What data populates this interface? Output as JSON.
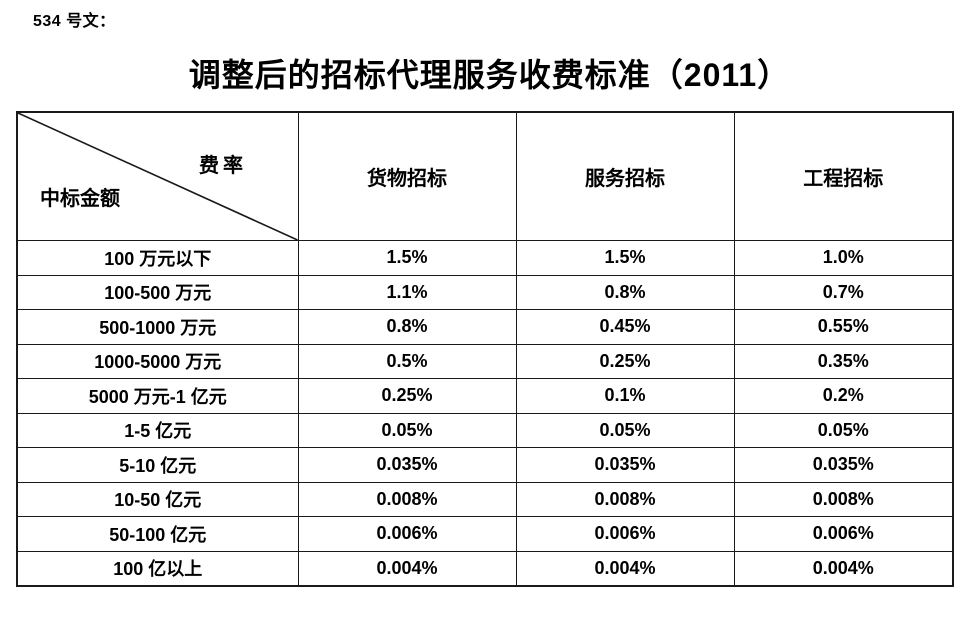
{
  "doc": {
    "ref_label": "534 号文：",
    "title": "调整后的招标代理服务收费标准（2011）"
  },
  "table": {
    "corner": {
      "top_right": "费率",
      "bottom_left": "中标金额"
    },
    "columns": [
      "货物招标",
      "服务招标",
      "工程招标"
    ],
    "rows": [
      {
        "label": "100 万元以下",
        "values": [
          "1.5%",
          "1.5%",
          "1.0%"
        ]
      },
      {
        "label": "100-500 万元",
        "values": [
          "1.1%",
          "0.8%",
          "0.7%"
        ]
      },
      {
        "label": "500-1000 万元",
        "values": [
          "0.8%",
          "0.45%",
          "0.55%"
        ]
      },
      {
        "label": "1000-5000 万元",
        "values": [
          "0.5%",
          "0.25%",
          "0.35%"
        ]
      },
      {
        "label": "5000 万元-1 亿元",
        "values": [
          "0.25%",
          "0.1%",
          "0.2%"
        ]
      },
      {
        "label": "1-5 亿元",
        "values": [
          "0.05%",
          "0.05%",
          "0.05%"
        ]
      },
      {
        "label": "5-10 亿元",
        "values": [
          "0.035%",
          "0.035%",
          "0.035%"
        ]
      },
      {
        "label": "10-50 亿元",
        "values": [
          "0.008%",
          "0.008%",
          "0.008%"
        ]
      },
      {
        "label": "50-100 亿元",
        "values": [
          "0.006%",
          "0.006%",
          "0.006%"
        ]
      },
      {
        "label": "100 亿以上",
        "values": [
          "0.004%",
          "0.004%",
          "0.004%"
        ]
      }
    ]
  },
  "colors": {
    "text": "#000000",
    "border": "#1a1a1a",
    "background": "#ffffff"
  }
}
